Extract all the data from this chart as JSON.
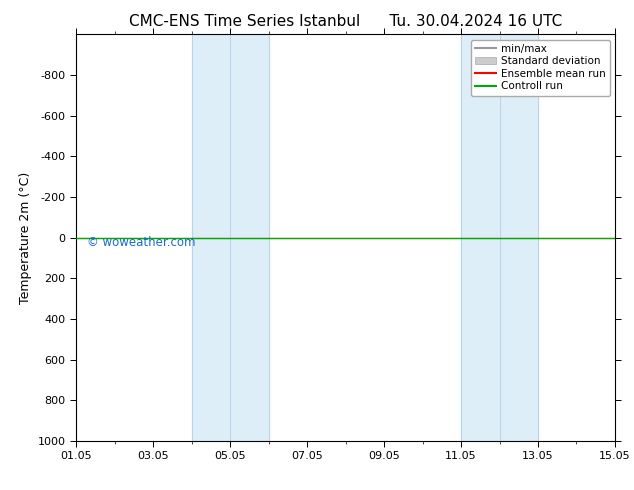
{
  "title": "CMC-ENS Time Series Istanbul      Tu. 30.04.2024 16 UTC",
  "ylabel": "Temperature 2m (°C)",
  "xtick_labels": [
    "01.05",
    "03.05",
    "05.05",
    "07.05",
    "09.05",
    "11.05",
    "13.05",
    "15.05"
  ],
  "xtick_positions": [
    0,
    2,
    4,
    6,
    8,
    10,
    12,
    14
  ],
  "ylim": [
    -1000,
    1000
  ],
  "ytick_positions": [
    -800,
    -600,
    -400,
    -200,
    0,
    200,
    400,
    600,
    800,
    1000
  ],
  "ytick_labels": [
    "-800",
    "-600",
    "-400",
    "-200",
    "0",
    "200",
    "400",
    "600",
    "800",
    "1000"
  ],
  "background_color": "#ffffff",
  "plot_bg_color": "#ffffff",
  "shaded_bands": [
    {
      "x_start": 3,
      "x_end": 5,
      "color": "#ddeef8"
    },
    {
      "x_start": 10,
      "x_end": 12,
      "color": "#ddeef8"
    }
  ],
  "vertical_lines": [
    3,
    4,
    5,
    10,
    11,
    12
  ],
  "vertical_line_color": "#b8d4e8",
  "control_run_color": "#00aa00",
  "ensemble_mean_color": "#ff0000",
  "minmax_color": "#999999",
  "std_dev_color": "#cccccc",
  "watermark_text": "© woweather.com",
  "watermark_color": "#1a6acd",
  "legend_labels": [
    "min/max",
    "Standard deviation",
    "Ensemble mean run",
    "Controll run"
  ],
  "legend_colors": [
    "#999999",
    "#cccccc",
    "#ff0000",
    "#00aa00"
  ],
  "title_fontsize": 11,
  "tick_fontsize": 8,
  "ylabel_fontsize": 9,
  "legend_fontsize": 7.5
}
